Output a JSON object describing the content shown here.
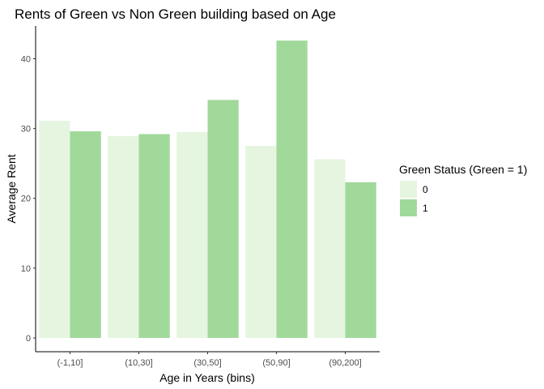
{
  "chart_data": {
    "type": "bar",
    "title": "Rents of Green vs Non Green building based on Age",
    "xlabel": "Age in Years (bins)",
    "ylabel": "Average Rent",
    "categories": [
      "(-1,10]",
      "(10,30]",
      "(30,50]",
      "(50,90]",
      "(90,200]"
    ],
    "series": [
      {
        "name": "0",
        "values": [
          31.1,
          28.9,
          29.5,
          27.5,
          25.6
        ],
        "color": "#e5f5e0"
      },
      {
        "name": "1",
        "values": [
          29.6,
          29.2,
          34.1,
          42.6,
          22.3
        ],
        "color": "#a1d99b"
      }
    ],
    "ylim": [
      0,
      44.7
    ],
    "yticks": [
      0,
      10,
      20,
      30,
      40
    ],
    "grid": false,
    "legend": {
      "title": "Green Status (Green = 1)",
      "placement": "right"
    }
  }
}
